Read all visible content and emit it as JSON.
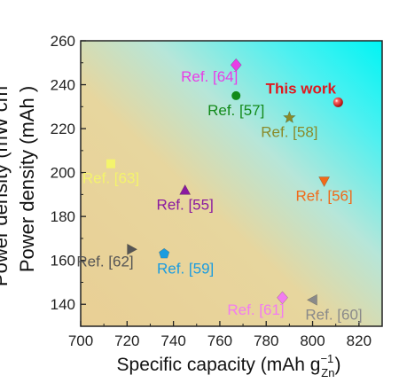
{
  "chart_data": {
    "type": "scatter",
    "xlabel": "Specific capacity (mAh g",
    "xlabel_sub": "Zn",
    "xlabel_sup": "−1",
    "xlabel_close": ")",
    "ylabel": "Power density (mAh )",
    "ylabel_cut": "Power density (mW cm",
    "xlim": [
      700,
      830
    ],
    "ylim": [
      130,
      260
    ],
    "xticks": [
      700,
      720,
      740,
      760,
      780,
      800,
      820
    ],
    "yticks": [
      140,
      160,
      180,
      200,
      220,
      240,
      260
    ],
    "grid": false,
    "background": "gradient: tan/orange bottom-left to cyan top-right",
    "points": [
      {
        "label": "This work",
        "x": 811,
        "y": 232,
        "marker": "sphere",
        "color": "#e0191f",
        "label_pos": "above-left",
        "bold": true
      },
      {
        "label": "Ref. [64]",
        "x": 767,
        "y": 249,
        "marker": "diamond",
        "color": "#e83de6",
        "label_pos": "below-left"
      },
      {
        "label": "Ref. [57]",
        "x": 767,
        "y": 235,
        "marker": "circle",
        "color": "#128a1a",
        "label_pos": "below"
      },
      {
        "label": "Ref. [58]",
        "x": 790,
        "y": 225,
        "marker": "star",
        "color": "#8a8a2a",
        "label_pos": "below"
      },
      {
        "label": "Ref. [63]",
        "x": 713,
        "y": 204,
        "marker": "square",
        "color": "#f4f46c",
        "label_pos": "below"
      },
      {
        "label": "Ref. [55]",
        "x": 745,
        "y": 192,
        "marker": "triangle-up",
        "color": "#8a1aa0",
        "label_pos": "below"
      },
      {
        "label": "Ref. [56]",
        "x": 805,
        "y": 196,
        "marker": "triangle-down",
        "color": "#f06a1a",
        "label_pos": "below"
      },
      {
        "label": "Ref. [62]",
        "x": 722,
        "y": 165,
        "marker": "triangle-right",
        "color": "#555555",
        "label_pos": "below-left"
      },
      {
        "label": "Ref. [59]",
        "x": 736,
        "y": 163,
        "marker": "pentagon",
        "color": "#1a9ce0",
        "label_pos": "below-right"
      },
      {
        "label": "Ref. [61]",
        "x": 787,
        "y": 143,
        "marker": "diamond",
        "color": "#f27cf0",
        "label_pos": "below-left"
      },
      {
        "label": "Ref. [60]",
        "x": 800,
        "y": 142,
        "marker": "triangle-left",
        "color": "#8a8a8a",
        "label_pos": "below-right"
      }
    ]
  }
}
